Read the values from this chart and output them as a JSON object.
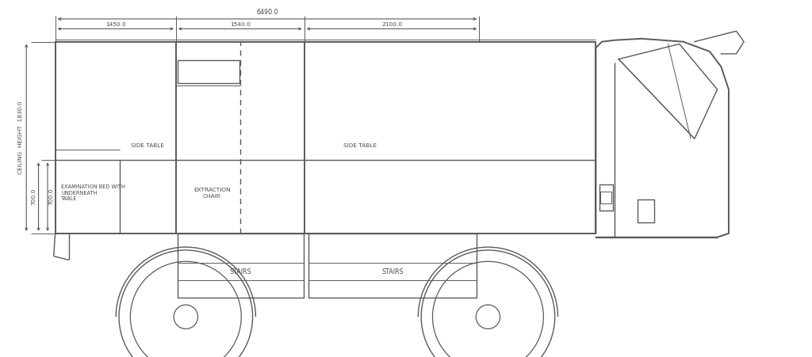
{
  "bg_color": "#ffffff",
  "line_color": "#5a5a5a",
  "lw": 1.0,
  "tlw": 1.4,
  "thin": 0.7,
  "text_color": "#4a4a4a",
  "fs": 5.8,
  "annotations": {
    "examination_bed": "EXAMINATION BED WITH\nUNDERNEATH\nTABLE",
    "side_table_left": "SIDE TABLE",
    "side_table_right": "SIDE TABLE",
    "extraction_chair": "EXTRACTION\nCHAIR",
    "stairs_left": "STAIRS",
    "stairs_right": "STAIRS",
    "ceiling_height": "CEILING  HEIGHT  1830.0",
    "dim_total": "6490.0",
    "dim1": "1450.0",
    "dim2": "1540.0",
    "dim3": "2100.0",
    "dim_700a": "700.0",
    "dim_700b": "700.0"
  }
}
